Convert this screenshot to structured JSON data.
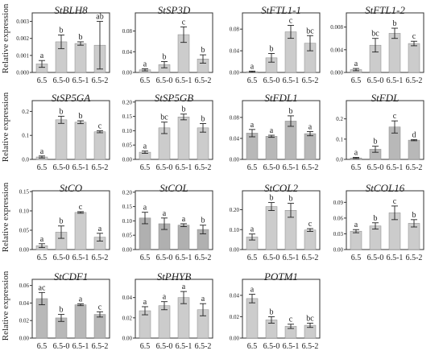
{
  "figure": {
    "ylabel": "Relative expression"
  },
  "chart_data": [
    {
      "type": "bar",
      "title": "StBLH8",
      "categories": [
        "6.5",
        "6.5-0",
        "6.5-1",
        "6.5-2"
      ],
      "values": [
        0.0005,
        0.0018,
        0.0017,
        0.0016
      ],
      "errors": [
        0.0002,
        0.0004,
        0.0001,
        0.0014
      ],
      "sig": [
        "a",
        "b",
        "b",
        "ab"
      ],
      "colors": [
        "#cccccc",
        "#cccccc",
        "#cccccc",
        "#cccccc"
      ],
      "ylim": [
        0,
        0.0035
      ],
      "yticks": [
        0,
        0.001,
        0.002,
        0.003
      ],
      "ytick_labels": [
        "0.000",
        "0.001",
        "0.002",
        "0.003"
      ]
    },
    {
      "type": "bar",
      "title": "StSP3D",
      "categories": [
        "6.5",
        "6.5-0",
        "6.5-1",
        "6.5-2"
      ],
      "values": [
        0.005,
        0.015,
        0.073,
        0.026
      ],
      "errors": [
        0.002,
        0.006,
        0.015,
        0.008
      ],
      "sig": [
        "a",
        "b",
        "c",
        "b"
      ],
      "colors": [
        "#cccccc",
        "#cccccc",
        "#cccccc",
        "#cccccc"
      ],
      "ylim": [
        0,
        0.115
      ],
      "yticks": [
        0,
        0.04,
        0.08
      ],
      "ytick_labels": [
        "0.00",
        "0.04",
        "0.08"
      ]
    },
    {
      "type": "bar",
      "title": "StFTL1-1",
      "categories": [
        "6.5",
        "6.5-0",
        "6.5-1",
        "6.5-2"
      ],
      "values": [
        0.0015,
        0.027,
        0.075,
        0.054
      ],
      "errors": [
        0.001,
        0.008,
        0.012,
        0.014
      ],
      "sig": [
        "a",
        "b",
        "c",
        "bc"
      ],
      "colors": [
        "#cccccc",
        "#cccccc",
        "#cccccc",
        "#cccccc"
      ],
      "ylim": [
        0,
        0.11
      ],
      "yticks": [
        0,
        0.04,
        0.08
      ],
      "ytick_labels": [
        "0.00",
        "0.04",
        "0.08"
      ]
    },
    {
      "type": "bar",
      "title": "StFTL1-2",
      "categories": [
        "6.5",
        "6.5-0",
        "6.5-1",
        "6.5-2"
      ],
      "values": [
        0.0005,
        0.0048,
        0.0069,
        0.0051
      ],
      "errors": [
        0.0002,
        0.0012,
        0.0009,
        0.0004
      ],
      "sig": [
        "a",
        "bc",
        "b",
        "c"
      ],
      "colors": [
        "#cccccc",
        "#cccccc",
        "#cccccc",
        "#cccccc"
      ],
      "ylim": [
        0,
        0.0105
      ],
      "yticks": [
        0,
        0.004,
        0.008
      ],
      "ytick_labels": [
        "0.000",
        "0.004",
        "0.008"
      ]
    },
    {
      "type": "bar",
      "title": "StSP5GA",
      "categories": [
        "6.5",
        "6.5-0",
        "6.5-1",
        "6.5-2"
      ],
      "values": [
        0.01,
        0.165,
        0.155,
        0.115
      ],
      "errors": [
        0.004,
        0.015,
        0.006,
        0.004
      ],
      "sig": [
        "a",
        "b",
        "b",
        "c"
      ],
      "colors": [
        "#cccccc",
        "#cccccc",
        "#cccccc",
        "#cccccc"
      ],
      "ylim": [
        0,
        0.245
      ],
      "yticks": [
        0,
        0.1,
        0.2
      ],
      "ytick_labels": [
        "0.0",
        "0.1",
        "0.2"
      ]
    },
    {
      "type": "bar",
      "title": "StSP5GB",
      "categories": [
        "6.5",
        "6.5-0",
        "6.5-1",
        "6.5-2"
      ],
      "values": [
        0.025,
        0.11,
        0.148,
        0.11
      ],
      "errors": [
        0.004,
        0.02,
        0.01,
        0.015
      ],
      "sig": [
        "a",
        "bc",
        "b",
        "b"
      ],
      "colors": [
        "#cccccc",
        "#cccccc",
        "#cccccc",
        "#cccccc"
      ],
      "ylim": [
        0,
        0.205
      ],
      "yticks": [
        0,
        0.05,
        0.1,
        0.15,
        0.2
      ],
      "ytick_labels": [
        "0.00",
        "0.05",
        "0.10",
        "0.15",
        "0.20"
      ]
    },
    {
      "type": "bar",
      "title": "StFDL1",
      "categories": [
        "6.5",
        "6.5-0",
        "6.5-1",
        "6.5-2"
      ],
      "values": [
        0.05,
        0.044,
        0.073,
        0.049
      ],
      "errors": [
        0.007,
        0.002,
        0.01,
        0.004
      ],
      "sig": [
        "a",
        "a",
        "b",
        "a"
      ],
      "colors": [
        "#b8b8b8",
        "#b8b8b8",
        "#b8b8b8",
        "#b8b8b8"
      ],
      "ylim": [
        0,
        0.112
      ],
      "yticks": [
        0,
        0.04,
        0.08
      ],
      "ytick_labels": [
        "0.00",
        "0.04",
        "0.08"
      ]
    },
    {
      "type": "bar",
      "title": "StFDL",
      "categories": [
        "6.5",
        "6.5-0",
        "6.5-1",
        "6.5-2"
      ],
      "values": [
        0.007,
        0.05,
        0.16,
        0.095
      ],
      "errors": [
        0.003,
        0.015,
        0.03,
        0.003
      ],
      "sig": [
        "a",
        "b",
        "c",
        "d"
      ],
      "colors": [
        "#b8b8b8",
        "#b8b8b8",
        "#b8b8b8",
        "#b8b8b8"
      ],
      "ylim": [
        0,
        0.29
      ],
      "yticks": [
        0,
        0.1,
        0.2
      ],
      "ytick_labels": [
        "0.0",
        "0.1",
        "0.2"
      ]
    },
    {
      "type": "bar",
      "title": "StCO",
      "categories": [
        "6.5",
        "6.5-0",
        "6.5-1",
        "6.5-2"
      ],
      "values": [
        0.01,
        0.045,
        0.096,
        0.032
      ],
      "errors": [
        0.005,
        0.016,
        0.002,
        0.01
      ],
      "sig": [
        "a",
        "b",
        "c",
        "a"
      ],
      "colors": [
        "#cccccc",
        "#cccccc",
        "#cccccc",
        "#cccccc"
      ],
      "ylim": [
        0,
        0.152
      ],
      "yticks": [
        0,
        0.05,
        0.1,
        0.15
      ],
      "ytick_labels": [
        "0.00",
        "0.05",
        "0.10",
        "0.15"
      ]
    },
    {
      "type": "bar",
      "title": "StCOL",
      "categories": [
        "6.5",
        "6.5-0",
        "6.5-1",
        "6.5-2"
      ],
      "values": [
        0.11,
        0.09,
        0.085,
        0.07
      ],
      "errors": [
        0.02,
        0.02,
        0.005,
        0.015
      ],
      "sig": [
        "a",
        "a",
        "a",
        "b"
      ],
      "colors": [
        "#b0b0b0",
        "#b0b0b0",
        "#b0b0b0",
        "#b0b0b0"
      ],
      "ylim": [
        0,
        0.205
      ],
      "yticks": [
        0,
        0.05,
        0.1,
        0.15,
        0.2
      ],
      "ytick_labels": [
        "0.00",
        "0.05",
        "0.10",
        "0.15",
        "0.20"
      ]
    },
    {
      "type": "bar",
      "title": "StCOL2",
      "categories": [
        "6.5",
        "6.5-0",
        "6.5-1",
        "6.5-2"
      ],
      "values": [
        0.063,
        0.216,
        0.197,
        0.098
      ],
      "errors": [
        0.015,
        0.02,
        0.035,
        0.007
      ],
      "sig": [
        "a",
        "b",
        "b",
        "c"
      ],
      "colors": [
        "#cccccc",
        "#cccccc",
        "#cccccc",
        "#cccccc"
      ],
      "ylim": [
        0,
        0.295
      ],
      "yticks": [
        0,
        0.1,
        0.2
      ],
      "ytick_labels": [
        "0.00",
        "0.10",
        "0.20"
      ]
    },
    {
      "type": "bar",
      "title": "StCOL16",
      "categories": [
        "6.5",
        "6.5-0",
        "6.5-1",
        "6.5-2"
      ],
      "values": [
        0.035,
        0.045,
        0.07,
        0.05
      ],
      "errors": [
        0.003,
        0.006,
        0.013,
        0.007
      ],
      "sig": [
        "a",
        "b",
        "c",
        "b"
      ],
      "colors": [
        "#cccccc",
        "#cccccc",
        "#cccccc",
        "#cccccc"
      ],
      "ylim": [
        0,
        0.112
      ],
      "yticks": [
        0,
        0.03,
        0.06,
        0.09
      ],
      "ytick_labels": [
        "0.00",
        "0.03",
        "0.06",
        "0.09"
      ]
    },
    {
      "type": "bar",
      "title": "StCDF1",
      "categories": [
        "6.5",
        "6.5-0",
        "6.5-1",
        "6.5-2"
      ],
      "values": [
        0.045,
        0.023,
        0.038,
        0.027
      ],
      "errors": [
        0.007,
        0.004,
        0.001,
        0.003
      ],
      "sig": [
        "ac",
        "b",
        "a",
        "c"
      ],
      "colors": [
        "#b8b8b8",
        "#b8b8b8",
        "#b8b8b8",
        "#b8b8b8"
      ],
      "ylim": [
        0,
        0.067
      ],
      "yticks": [
        0,
        0.02,
        0.04,
        0.06
      ],
      "ytick_labels": [
        "0.00",
        "0.02",
        "0.04",
        "0.06"
      ]
    },
    {
      "type": "bar",
      "title": "StPHYB",
      "categories": [
        "6.5",
        "6.5-0",
        "6.5-1",
        "6.5-2"
      ],
      "values": [
        0.027,
        0.032,
        0.04,
        0.028
      ],
      "errors": [
        0.004,
        0.004,
        0.006,
        0.006
      ],
      "sig": [
        "a",
        "a",
        "a",
        "a"
      ],
      "colors": [
        "#cccccc",
        "#cccccc",
        "#cccccc",
        "#cccccc"
      ],
      "ylim": [
        0,
        0.058
      ],
      "yticks": [
        0,
        0.02,
        0.04
      ],
      "ytick_labels": [
        "0.00",
        "0.02",
        "0.04"
      ]
    },
    {
      "type": "bar",
      "title": "POTM1",
      "title_italic": false,
      "categories": [
        "6.5",
        "6.5-0",
        "6.5-1",
        "6.5-2"
      ],
      "values": [
        0.037,
        0.017,
        0.011,
        0.012
      ],
      "errors": [
        0.004,
        0.003,
        0.002,
        0.002
      ],
      "sig": [
        "a",
        "b",
        "c",
        "bc"
      ],
      "colors": [
        "#cccccc",
        "#cccccc",
        "#cccccc",
        "#cccccc"
      ],
      "ylim": [
        0,
        0.055
      ],
      "yticks": [
        0,
        0.02,
        0.04
      ],
      "ytick_labels": [
        "0.00",
        "0.02",
        "0.04"
      ]
    }
  ]
}
